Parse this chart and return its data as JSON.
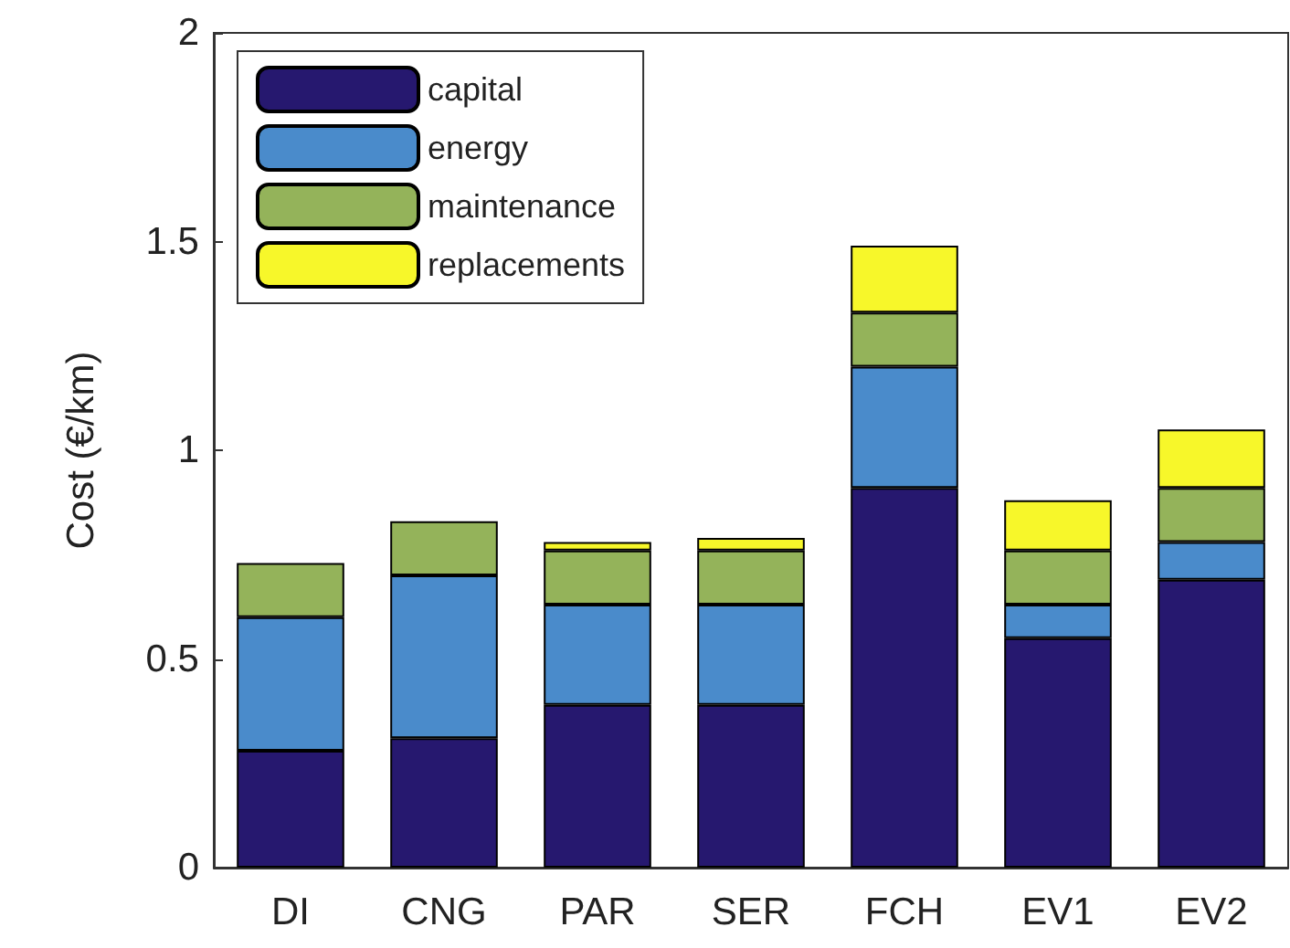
{
  "chart_data": {
    "type": "bar",
    "stacked": true,
    "ylabel": "Cost (€/km)",
    "categories": [
      "DI",
      "CNG",
      "PAR",
      "SER",
      "FCH",
      "EV1",
      "EV2"
    ],
    "series": [
      {
        "name": "capital",
        "color": "#26186f",
        "values": [
          0.28,
          0.31,
          0.39,
          0.39,
          0.91,
          0.55,
          0.69
        ]
      },
      {
        "name": "energy",
        "color": "#4a8bcb",
        "values": [
          0.32,
          0.39,
          0.24,
          0.24,
          0.29,
          0.08,
          0.09
        ]
      },
      {
        "name": "maintenance",
        "color": "#94b35a",
        "values": [
          0.13,
          0.13,
          0.13,
          0.13,
          0.13,
          0.13,
          0.13
        ]
      },
      {
        "name": "replacements",
        "color": "#f7f72a",
        "values": [
          null,
          null,
          0.02,
          0.03,
          0.16,
          0.12,
          0.14
        ]
      }
    ],
    "ylim": [
      0,
      2
    ],
    "yticks": [
      0,
      0.5,
      1,
      1.5,
      2
    ],
    "grid": false,
    "legend": "top left"
  }
}
